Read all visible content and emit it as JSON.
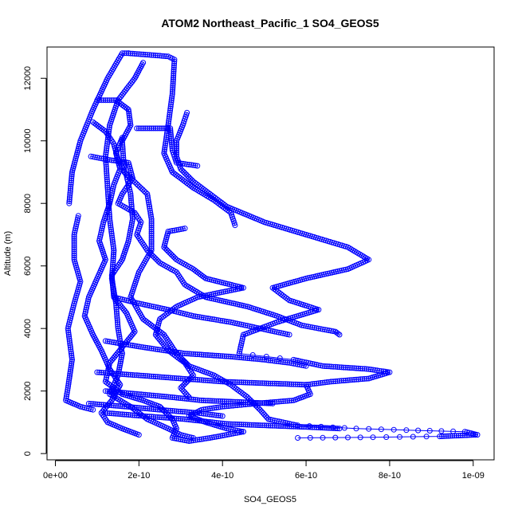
{
  "chart_data": {
    "type": "scatter",
    "title": "ATOM2 Northeast_Pacific_1 SO4_GEOS5",
    "xlabel": "SO4_GEOS5",
    "ylabel": "Altitude (m)",
    "xlim": [
      -2e-11,
      1.05e-09
    ],
    "ylim": [
      -200,
      13000
    ],
    "x_ticks": [
      0,
      2e-10,
      4e-10,
      6e-10,
      8e-10,
      1e-09
    ],
    "x_tick_labels": [
      "0e+00",
      "2e-10",
      "4e-10",
      "6e-10",
      "8e-10",
      "1e-09"
    ],
    "y_ticks": [
      0,
      2000,
      4000,
      6000,
      8000,
      10000,
      12000
    ],
    "y_tick_labels": [
      "0",
      "2000",
      "4000",
      "6000",
      "8000",
      "10000",
      "12000"
    ],
    "grid": false,
    "color": "#0000ff",
    "marker": "open-circle",
    "series": [
      {
        "values": [
          [
            3.3e-11,
            8000
          ],
          [
            4e-11,
            9000
          ],
          [
            6e-11,
            10000
          ],
          [
            9e-11,
            11000
          ],
          [
            1.25e-10,
            12000
          ],
          [
            1.6e-10,
            12800
          ],
          [
            1.75e-10,
            12800
          ]
        ]
      },
      {
        "values": [
          [
            1.75e-10,
            12800
          ],
          [
            2.7e-10,
            12700
          ],
          [
            2.85e-10,
            12600
          ],
          [
            2.8e-10,
            11500
          ],
          [
            2.7e-10,
            10500
          ],
          [
            2.6e-10,
            9600
          ],
          [
            2.8e-10,
            9000
          ],
          [
            3.3e-10,
            8500
          ],
          [
            3.8e-10,
            8100
          ],
          [
            4.2e-10,
            7700
          ],
          [
            4.3e-10,
            7300
          ]
        ]
      },
      {
        "values": [
          [
            5.5e-11,
            7600
          ],
          [
            4.5e-11,
            7000
          ],
          [
            4.5e-11,
            6200
          ],
          [
            6e-11,
            5500
          ],
          [
            4.5e-11,
            4800
          ],
          [
            3e-11,
            4000
          ],
          [
            4e-11,
            3000
          ],
          [
            3e-11,
            2100
          ],
          [
            2.5e-11,
            1700
          ],
          [
            6e-11,
            1500
          ],
          [
            9e-11,
            1400
          ]
        ]
      },
      {
        "values": [
          [
            2.1e-10,
            12500
          ],
          [
            1.9e-10,
            12000
          ],
          [
            1.5e-10,
            11300
          ],
          [
            1.3e-10,
            10500
          ],
          [
            1.2e-10,
            9500
          ],
          [
            1.25e-10,
            8500
          ],
          [
            1.3e-10,
            7500
          ],
          [
            1.4e-10,
            6500
          ],
          [
            1.35e-10,
            5600
          ],
          [
            1.45e-10,
            4800
          ],
          [
            1.5e-10,
            4000
          ],
          [
            1.6e-10,
            3200
          ],
          [
            1.5e-10,
            2500
          ],
          [
            1.3e-10,
            1900
          ],
          [
            1.8e-10,
            1500
          ],
          [
            2.2e-10,
            1100
          ],
          [
            2.7e-10,
            800
          ],
          [
            3e-10,
            600
          ],
          [
            3.3e-10,
            500
          ]
        ]
      },
      {
        "values": [
          [
            8.5e-11,
            9500
          ],
          [
            1.25e-10,
            9400
          ],
          [
            1.75e-10,
            9300
          ],
          [
            1.85e-10,
            8800
          ],
          [
            1.6e-10,
            8300
          ],
          [
            1.5e-10,
            8000
          ],
          [
            1.9e-10,
            7700
          ],
          [
            2.05e-10,
            7400
          ],
          [
            1.95e-10,
            7000
          ],
          [
            2.2e-10,
            6500
          ],
          [
            2.5e-10,
            6100
          ],
          [
            2.9e-10,
            5800
          ],
          [
            3.1e-10,
            5400
          ],
          [
            3.6e-10,
            5000
          ],
          [
            4.6e-10,
            4700
          ],
          [
            5.3e-10,
            4400
          ],
          [
            5.9e-10,
            4100
          ],
          [
            6.7e-10,
            3900
          ],
          [
            6.8e-10,
            3800
          ]
        ]
      },
      {
        "values": [
          [
            1.95e-10,
            10400
          ],
          [
            2.75e-10,
            10400
          ],
          [
            2.8e-10,
            9700
          ],
          [
            2.9e-10,
            9300
          ],
          [
            3.4e-10,
            9200
          ]
        ]
      },
      {
        "values": [
          [
            3.15e-10,
            10900
          ],
          [
            3.05e-10,
            10500
          ],
          [
            2.9e-10,
            10000
          ],
          [
            2.9e-10,
            9500
          ],
          [
            3e-10,
            9100
          ],
          [
            3.3e-10,
            8700
          ],
          [
            3.7e-10,
            8300
          ],
          [
            4.1e-10,
            7900
          ],
          [
            5e-10,
            7400
          ],
          [
            6e-10,
            7000
          ],
          [
            7e-10,
            6600
          ],
          [
            7.5e-10,
            6200
          ],
          [
            7e-10,
            5900
          ],
          [
            6e-10,
            5600
          ],
          [
            5.2e-10,
            5300
          ],
          [
            5.6e-10,
            4900
          ],
          [
            6.3e-10,
            4600
          ],
          [
            5.3e-10,
            4200
          ],
          [
            4.5e-10,
            3800
          ],
          [
            4.4e-10,
            3200
          ],
          [
            5.7e-10,
            3000
          ],
          [
            6.4e-10,
            2800
          ],
          [
            7.5e-10,
            2700
          ],
          [
            8e-10,
            2600
          ],
          [
            7.5e-10,
            2400
          ],
          [
            6.6e-10,
            2300
          ],
          [
            6e-10,
            2200
          ],
          [
            6.1e-10,
            1900
          ],
          [
            5.7e-10,
            1700
          ],
          [
            4.8e-10,
            1600
          ],
          [
            4e-10,
            1500
          ],
          [
            3.5e-10,
            1400
          ],
          [
            3.2e-10,
            1200
          ],
          [
            3.6e-10,
            1000
          ],
          [
            4.1e-10,
            800
          ],
          [
            4.5e-10,
            700
          ]
        ]
      },
      {
        "values": [
          [
            1e-10,
            11300
          ],
          [
            1.45e-10,
            11300
          ],
          [
            1.75e-10,
            11000
          ],
          [
            1.8e-10,
            10500
          ],
          [
            1.6e-10,
            10000
          ],
          [
            1.65e-10,
            9000
          ],
          [
            2.2e-10,
            8300
          ],
          [
            2.3e-10,
            7500
          ],
          [
            2.3e-10,
            6500
          ],
          [
            2e-10,
            5800
          ],
          [
            1.8e-10,
            5000
          ],
          [
            2.1e-10,
            4300
          ],
          [
            2.6e-10,
            3800
          ],
          [
            2.9e-10,
            3200
          ],
          [
            3.2e-10,
            2800
          ],
          [
            3.8e-10,
            2500
          ],
          [
            4.2e-10,
            2200
          ],
          [
            4.6e-10,
            1800
          ],
          [
            4.9e-10,
            1400
          ],
          [
            5.1e-10,
            1100
          ],
          [
            5.8e-10,
            900
          ],
          [
            7.2e-10,
            800
          ],
          [
            8.4e-10,
            750
          ],
          [
            9.8e-10,
            700
          ],
          [
            1.01e-09,
            600
          ],
          [
            9.2e-10,
            550
          ],
          [
            7.6e-10,
            520
          ],
          [
            5.8e-10,
            500
          ]
        ]
      },
      {
        "values": [
          [
            9e-11,
            10600
          ],
          [
            1.2e-10,
            10300
          ],
          [
            1.4e-10,
            9900
          ],
          [
            1.5e-10,
            9400
          ],
          [
            1.7e-10,
            8900
          ],
          [
            1.8e-10,
            8300
          ],
          [
            1.85e-10,
            7500
          ],
          [
            1.75e-10,
            6800
          ],
          [
            1.6e-10,
            6200
          ],
          [
            1.35e-10,
            5700
          ],
          [
            1.4e-10,
            5000
          ],
          [
            1.7e-10,
            4500
          ],
          [
            1.9e-10,
            3900
          ],
          [
            1.6e-10,
            3400
          ],
          [
            1.3e-10,
            2900
          ],
          [
            1.2e-10,
            2300
          ],
          [
            1.6e-10,
            1900
          ],
          [
            2.1e-10,
            1700
          ],
          [
            2.5e-10,
            1500
          ],
          [
            2.8e-10,
            1100
          ],
          [
            2.9e-10,
            800
          ],
          [
            2.8e-10,
            500
          ],
          [
            3.2e-10,
            400
          ],
          [
            3.7e-10,
            500
          ],
          [
            4.5e-10,
            700
          ]
        ]
      },
      {
        "values": [
          [
            3.1e-10,
            7200
          ],
          [
            2.7e-10,
            7100
          ],
          [
            2.6e-10,
            6600
          ],
          [
            2.9e-10,
            6200
          ],
          [
            3.3e-10,
            5900
          ],
          [
            3.6e-10,
            5600
          ],
          [
            4.5e-10,
            5300
          ],
          [
            3.4e-10,
            5000
          ],
          [
            2.9e-10,
            4700
          ],
          [
            2.5e-10,
            4300
          ],
          [
            2.4e-10,
            3800
          ],
          [
            2.7e-10,
            3300
          ],
          [
            3.1e-10,
            2900
          ],
          [
            3.3e-10,
            2500
          ],
          [
            3e-10,
            2100
          ],
          [
            3.2e-10,
            1800
          ]
        ]
      },
      {
        "values": [
          [
            1.6e-10,
            10100
          ],
          [
            1.45e-10,
            9600
          ],
          [
            1.55e-10,
            9100
          ],
          [
            1.4e-10,
            8600
          ],
          [
            1.3e-10,
            8000
          ],
          [
            1.15e-10,
            7400
          ],
          [
            1.05e-10,
            6800
          ],
          [
            1.2e-10,
            6200
          ],
          [
            1e-10,
            5600
          ],
          [
            8e-11,
            5000
          ],
          [
            7e-11,
            4400
          ],
          [
            9e-11,
            3800
          ],
          [
            1.1e-10,
            3300
          ],
          [
            1.3e-10,
            2700
          ],
          [
            1.55e-10,
            2200
          ],
          [
            1.35e-10,
            1700
          ],
          [
            1.1e-10,
            1300
          ],
          [
            1.25e-10,
            1000
          ],
          [
            1.6e-10,
            800
          ],
          [
            2e-10,
            600
          ]
        ]
      },
      {
        "values": [
          [
            1.4e-10,
            5000
          ],
          [
            2e-10,
            4800
          ],
          [
            2.7e-10,
            4600
          ],
          [
            3.3e-10,
            4400
          ],
          [
            4.2e-10,
            4200
          ],
          [
            4.9e-10,
            4000
          ],
          [
            5.6e-10,
            3800
          ]
        ]
      },
      {
        "values": [
          [
            1.2e-10,
            3600
          ],
          [
            2.1e-10,
            3400
          ],
          [
            3.1e-10,
            3200
          ],
          [
            4.2e-10,
            3100
          ],
          [
            5e-10,
            3000
          ],
          [
            5.6e-10,
            2900
          ],
          [
            6e-10,
            2800
          ]
        ]
      },
      {
        "values": [
          [
            1e-10,
            2600
          ],
          [
            2e-10,
            2500
          ],
          [
            3e-10,
            2400
          ],
          [
            4e-10,
            2300
          ],
          [
            5e-10,
            2250
          ],
          [
            6e-10,
            2200
          ]
        ]
      },
      {
        "values": [
          [
            1.2e-10,
            2000
          ],
          [
            2e-10,
            1900
          ],
          [
            2.8e-10,
            1800
          ],
          [
            3.5e-10,
            1700
          ],
          [
            4.4e-10,
            1650
          ],
          [
            5.2e-10,
            1600
          ]
        ]
      },
      {
        "values": [
          [
            8e-11,
            1600
          ],
          [
            1.7e-10,
            1500
          ],
          [
            2.5e-10,
            1400
          ],
          [
            3.4e-10,
            1300
          ],
          [
            4e-10,
            1200
          ]
        ]
      },
      {
        "values": [
          [
            1.2e-10,
            1300
          ],
          [
            2.1e-10,
            1200
          ],
          [
            3.1e-10,
            1100
          ],
          [
            4.1e-10,
            950
          ],
          [
            5e-10,
            900
          ],
          [
            6e-10,
            850
          ],
          [
            6.8e-10,
            800
          ]
        ]
      }
    ]
  }
}
